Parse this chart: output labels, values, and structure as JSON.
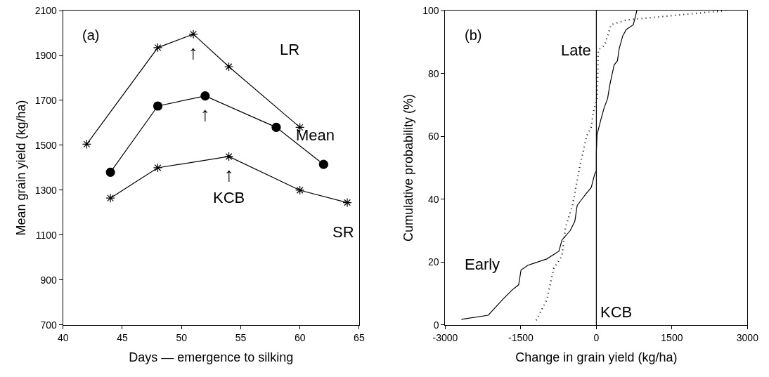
{
  "chart_data": [
    {
      "type": "line",
      "title": "(a)",
      "xlabel": "Days — emergence to silking",
      "ylabel": "Mean grain yield (kg/ha)",
      "xlim": [
        40,
        65
      ],
      "xticks": [
        40,
        45,
        50,
        55,
        60,
        65
      ],
      "ylim": [
        700,
        2100
      ],
      "yticks": [
        700,
        900,
        1100,
        1300,
        1500,
        1700,
        1900,
        2100
      ],
      "series": [
        {
          "name": "LR",
          "color": "#000000",
          "marker": "cross",
          "x": [
            42,
            48,
            51,
            54,
            60
          ],
          "values": [
            1505,
            1935,
            1995,
            1850,
            1580
          ]
        },
        {
          "name": "Mean",
          "color": "#000000",
          "marker": "circle",
          "x": [
            44,
            48,
            52,
            58,
            62
          ],
          "values": [
            1380,
            1675,
            1720,
            1580,
            1415
          ]
        },
        {
          "name": "SR",
          "color": "#000000",
          "marker": "cross",
          "x": [
            44,
            48,
            54,
            60,
            64
          ],
          "values": [
            1265,
            1400,
            1450,
            1300,
            1245
          ]
        }
      ],
      "annotations": [
        {
          "text": "↑",
          "x": 51,
          "y": 1995
        },
        {
          "text": "↑",
          "x": 52,
          "y": 1720
        },
        {
          "text": "↑",
          "x": 54,
          "y": 1450
        },
        {
          "text": "KCB",
          "x": 54,
          "y": 1450
        }
      ]
    },
    {
      "type": "line",
      "title": "(b)",
      "xlabel": "Change in grain yield (kg/ha)",
      "ylabel": "Cumulative probability (%)",
      "xlim": [
        -3000,
        3000
      ],
      "xticks": [
        -3000,
        -1500,
        0,
        1500,
        3000
      ],
      "ylim": [
        0,
        100
      ],
      "yticks": [
        0,
        20,
        40,
        60,
        80,
        100
      ],
      "series": [
        {
          "name": "Early",
          "color": "#000000",
          "line_style": "solid",
          "marker": "none",
          "x": [
            -2680,
            -2146,
            -1867,
            -1681,
            -1542,
            -1495,
            -1356,
            -985,
            -743,
            -683,
            -520,
            -427,
            -381,
            -288,
            -218,
            -102,
            -33,
            0,
            0,
            14,
            84,
            153,
            223,
            269,
            316,
            353,
            418,
            455,
            525,
            595,
            734,
            780,
            803
          ],
          "values": [
            1.8,
            3.1,
            8,
            11,
            12.8,
            17.5,
            19,
            21,
            23.5,
            27,
            30,
            33,
            38,
            40,
            41.5,
            43.7,
            48,
            49,
            55,
            60.5,
            65,
            69,
            72,
            76.5,
            80,
            82.7,
            84,
            88,
            92,
            94,
            95.5,
            98.4,
            100
          ]
        },
        {
          "name": "Late",
          "color": "#000000",
          "line_style": "dotted",
          "marker": "none",
          "x": [
            -1193,
            -985,
            -845,
            -683,
            -613,
            -474,
            -334,
            -195,
            -102,
            -56,
            14,
            28,
            37,
            167,
            292,
            594,
            2567
          ],
          "values": [
            1.5,
            8,
            18,
            22,
            31,
            38,
            50,
            60,
            63,
            68,
            72,
            79,
            87.5,
            89,
            95.5,
            97,
            100
          ]
        }
      ],
      "ref_lines": [
        {
          "axis": "x",
          "value": 0,
          "label": "KCB",
          "color": "#000000",
          "line_style": "solid"
        }
      ]
    }
  ]
}
